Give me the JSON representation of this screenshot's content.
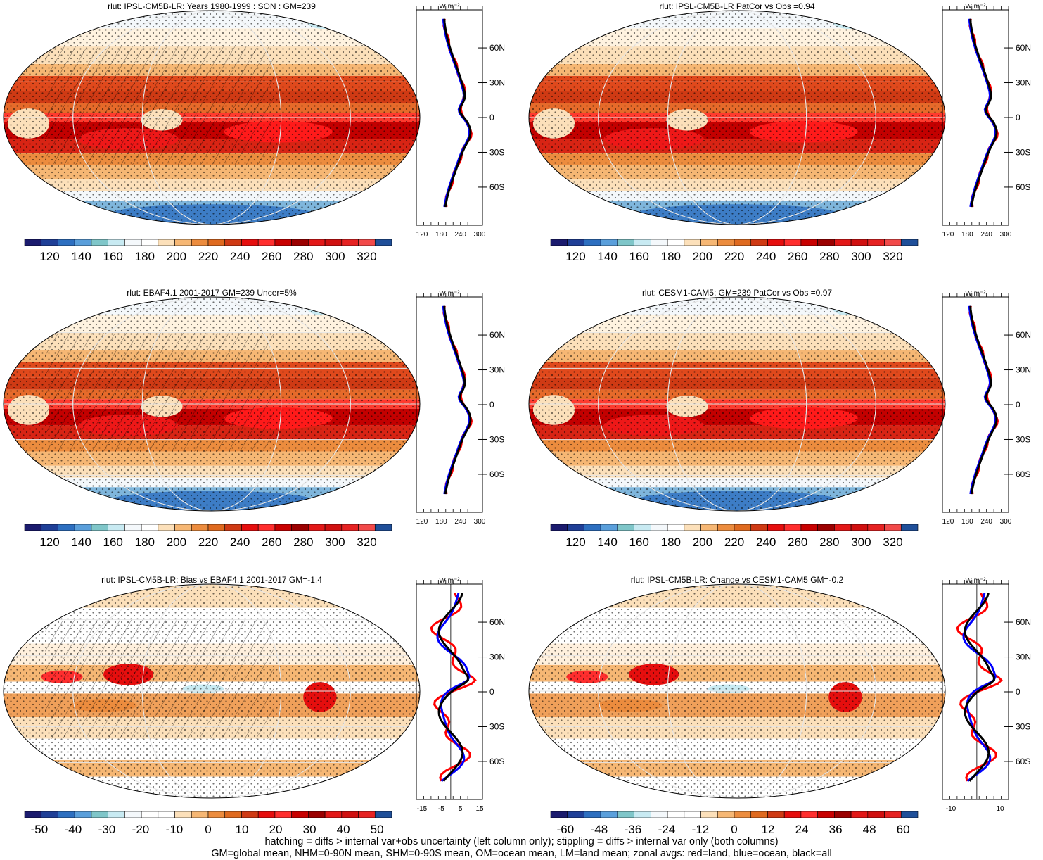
{
  "chart_data": [
    {
      "type": "heatmap",
      "title": "rlut: IPSL-CM5B-LR: Years 1980-1999 : SON : GM=239",
      "colorbar_ticks": [
        "120",
        "140",
        "160",
        "180",
        "200",
        "220",
        "240",
        "260",
        "280",
        "300",
        "320"
      ],
      "zonal": {
        "units": "W m⁻²",
        "xticks": [
          "120",
          "180",
          "240",
          "300"
        ],
        "yticks": [
          "60N",
          "30N",
          "0",
          "30S",
          "60S"
        ]
      }
    },
    {
      "type": "heatmap",
      "title": "rlut: IPSL-CM5B-LR PatCor vs Obs =0.94",
      "colorbar_ticks": [
        "120",
        "140",
        "160",
        "180",
        "200",
        "220",
        "240",
        "260",
        "280",
        "300",
        "320"
      ],
      "zonal": {
        "units": "W m⁻²",
        "xticks": [
          "120",
          "180",
          "240",
          "300"
        ],
        "yticks": [
          "60N",
          "30N",
          "0",
          "30S",
          "60S"
        ]
      }
    },
    {
      "type": "heatmap",
      "title": "rlut: EBAF4.1 2001-2017 GM=239 Uncer=5%",
      "colorbar_ticks": [
        "120",
        "140",
        "160",
        "180",
        "200",
        "220",
        "240",
        "260",
        "280",
        "300",
        "320"
      ],
      "zonal": {
        "units": "W m⁻²",
        "xticks": [
          "120",
          "180",
          "240",
          "300"
        ],
        "yticks": [
          "60N",
          "30N",
          "0",
          "30S",
          "60S"
        ]
      }
    },
    {
      "type": "heatmap",
      "title": "rlut: CESM1-CAM5: GM=239 PatCor vs Obs =0.97",
      "colorbar_ticks": [
        "120",
        "140",
        "160",
        "180",
        "200",
        "220",
        "240",
        "260",
        "280",
        "300",
        "320"
      ],
      "zonal": {
        "units": "W m⁻²",
        "xticks": [
          "120",
          "180",
          "240",
          "300"
        ],
        "yticks": [
          "60N",
          "30N",
          "0",
          "30S",
          "60S"
        ]
      }
    },
    {
      "type": "heatmap",
      "title": "rlut: IPSL-CM5B-LR: Bias vs EBAF4.1 2001-2017  GM=-1.4",
      "colorbar_ticks": [
        "-50",
        "-40",
        "-30",
        "-20",
        "-10",
        "0",
        "10",
        "20",
        "30",
        "40",
        "50"
      ],
      "zonal": {
        "units": "W m⁻²",
        "xticks": [
          "-15",
          "-5",
          "5",
          "15"
        ],
        "yticks": [
          "60N",
          "30N",
          "0",
          "30S",
          "60S"
        ]
      }
    },
    {
      "type": "heatmap",
      "title": "rlut: IPSL-CM5B-LR: Change vs CESM1-CAM5 GM=-0.2",
      "colorbar_ticks": [
        "-60",
        "-48",
        "-36",
        "-24",
        "-12",
        "0",
        "12",
        "24",
        "36",
        "48",
        "60"
      ],
      "zonal": {
        "units": "W m⁻²",
        "xticks": [
          "-10",
          "10"
        ],
        "yticks": [
          "60N",
          "30N",
          "0",
          "30S",
          "60S"
        ]
      }
    }
  ],
  "colors": {
    "abs_scale": [
      "#1b1b6e",
      "#1f3f97",
      "#2d6fc0",
      "#5a9fdb",
      "#7fc6c9",
      "#c8eaf2",
      "#f4f8fb",
      "#ffffff",
      "#fce0ba",
      "#f6b774",
      "#ec8c3e",
      "#df6a1f",
      "#cf3a14",
      "#e60e0e",
      "#ff2e2e",
      "#c80000",
      "#9b0000",
      "#e31818",
      "#d01010",
      "#e62222",
      "#f24a4a",
      "#1f4f99"
    ],
    "anom_scale": [
      "#1b1b6e",
      "#1f3f97",
      "#2d6fc0",
      "#5a9fdb",
      "#7fc6c9",
      "#c8eaf2",
      "#f4f8fb",
      "#ffffff",
      "#ffffff",
      "#fce0ba",
      "#f6b774",
      "#ec8c3e",
      "#df6a1f",
      "#cf3a14",
      "#e60e0e",
      "#ff2e2e",
      "#c80000",
      "#9b0000",
      "#e31818",
      "#d01010",
      "#e62222",
      "#1f4f99"
    ],
    "zonal_land": "#ff0000",
    "zonal_ocean": "#0000ff",
    "zonal_all": "#000000"
  },
  "footnote": {
    "line1": "hatching = diffs > internal var+obs uncertainty (left column only); stippling = diffs > internal var only (both columns)",
    "line2": "GM=global mean, NHM=0-90N mean, SHM=0-90S mean, OM=ocean mean, LM=land mean; zonal avgs: red=land, blue=ocean, black=all"
  }
}
